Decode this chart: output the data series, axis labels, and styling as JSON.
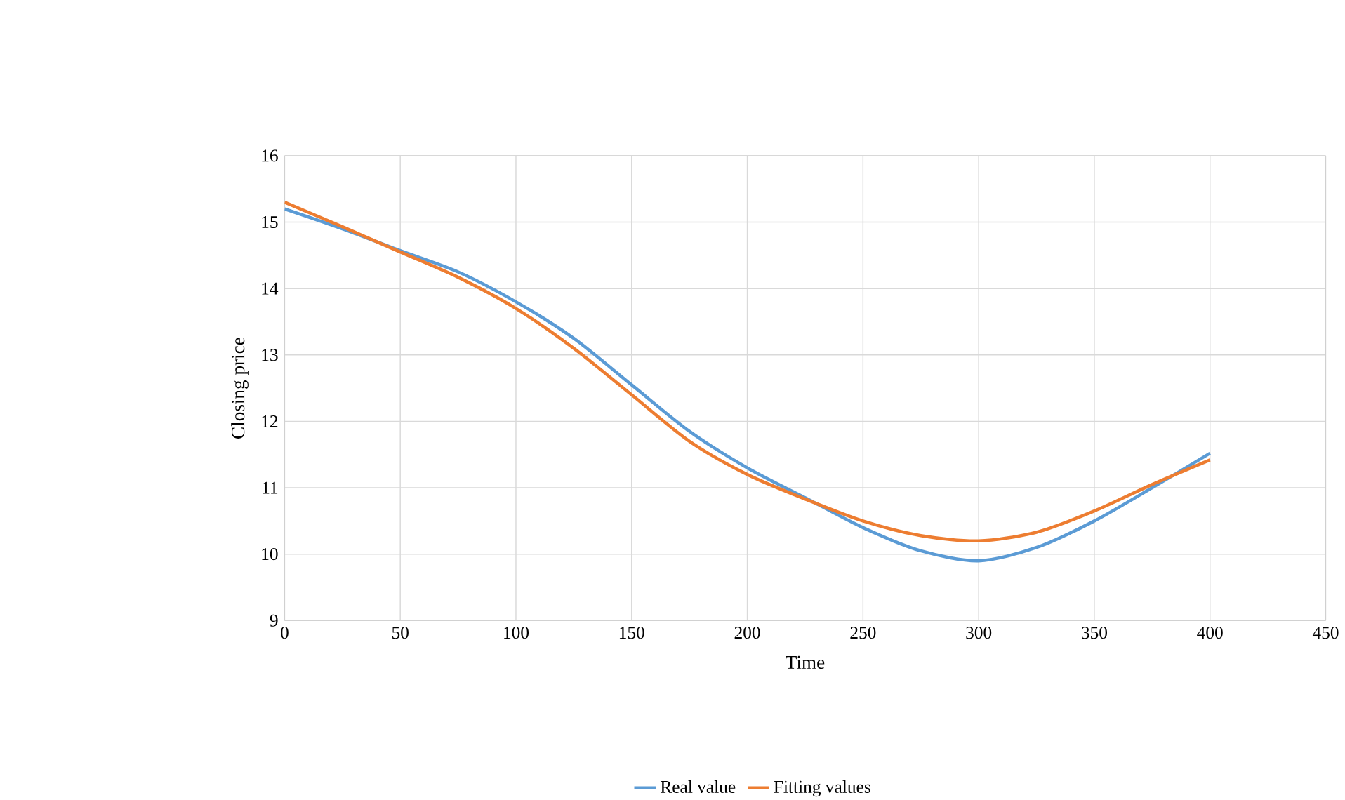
{
  "chart_data": {
    "type": "line",
    "xlabel": "Time",
    "ylabel": "Closing price",
    "x": [
      0,
      25,
      50,
      75,
      100,
      125,
      150,
      175,
      200,
      225,
      250,
      275,
      300,
      325,
      350,
      375,
      400
    ],
    "series": [
      {
        "name": "Real value",
        "color": "#5b9bd5",
        "values": [
          15.2,
          14.9,
          14.57,
          14.25,
          13.8,
          13.25,
          12.55,
          11.85,
          11.3,
          10.85,
          10.4,
          10.05,
          9.9,
          10.1,
          10.5,
          11.0,
          11.52
        ]
      },
      {
        "name": "Fitting values",
        "color": "#ed7d31",
        "values": [
          15.3,
          14.93,
          14.55,
          14.17,
          13.7,
          13.1,
          12.4,
          11.7,
          11.2,
          10.83,
          10.5,
          10.28,
          10.2,
          10.33,
          10.65,
          11.05,
          11.42
        ]
      }
    ],
    "xlim": [
      0,
      450
    ],
    "xticks": [
      0,
      50,
      100,
      150,
      200,
      250,
      300,
      350,
      400,
      450
    ],
    "ylim": [
      9,
      16
    ],
    "yticks": [
      9,
      10,
      11,
      12,
      13,
      14,
      15,
      16
    ],
    "grid": true,
    "legend": "bottom",
    "marker": "none",
    "line_style": "solid"
  }
}
